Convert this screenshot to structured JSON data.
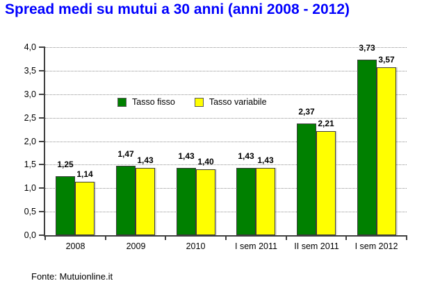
{
  "chart_data": {
    "type": "bar",
    "title": "Spread medi su mutui a 30 anni (anni 2008 - 2012)",
    "title_color": "#0000FF",
    "categories": [
      "2008",
      "2009",
      "2010",
      "I sem 2011",
      "II sem 2011",
      "I sem 2012"
    ],
    "series": [
      {
        "name": "Tasso fisso",
        "color": "#008000",
        "values": [
          1.25,
          1.47,
          1.43,
          1.43,
          2.37,
          3.73
        ],
        "labels": [
          "1,25",
          "1,47",
          "1,43",
          "1,43",
          "2,37",
          "3,73"
        ]
      },
      {
        "name": "Tasso variabile",
        "color": "#FFFF00",
        "values": [
          1.14,
          1.43,
          1.4,
          1.43,
          2.21,
          3.57
        ],
        "labels": [
          "1,14",
          "1,43",
          "1,40",
          "1,43",
          "2,21",
          "3,57"
        ]
      }
    ],
    "ylim": [
      0,
      4
    ],
    "ytick_step": 0.5,
    "ytick_labels": [
      "0,0",
      "0,5",
      "1,0",
      "1,5",
      "2,0",
      "2,5",
      "3,0",
      "3,5",
      "4,0"
    ],
    "grid": "horizontal-dotted",
    "legend_position": "inside-upper-middle",
    "bar_border_color": "#3b3b3b",
    "axis_color": "#404040",
    "gridline_color": "#8f8f8f",
    "source": "Fonte: Mutuionline.it"
  }
}
